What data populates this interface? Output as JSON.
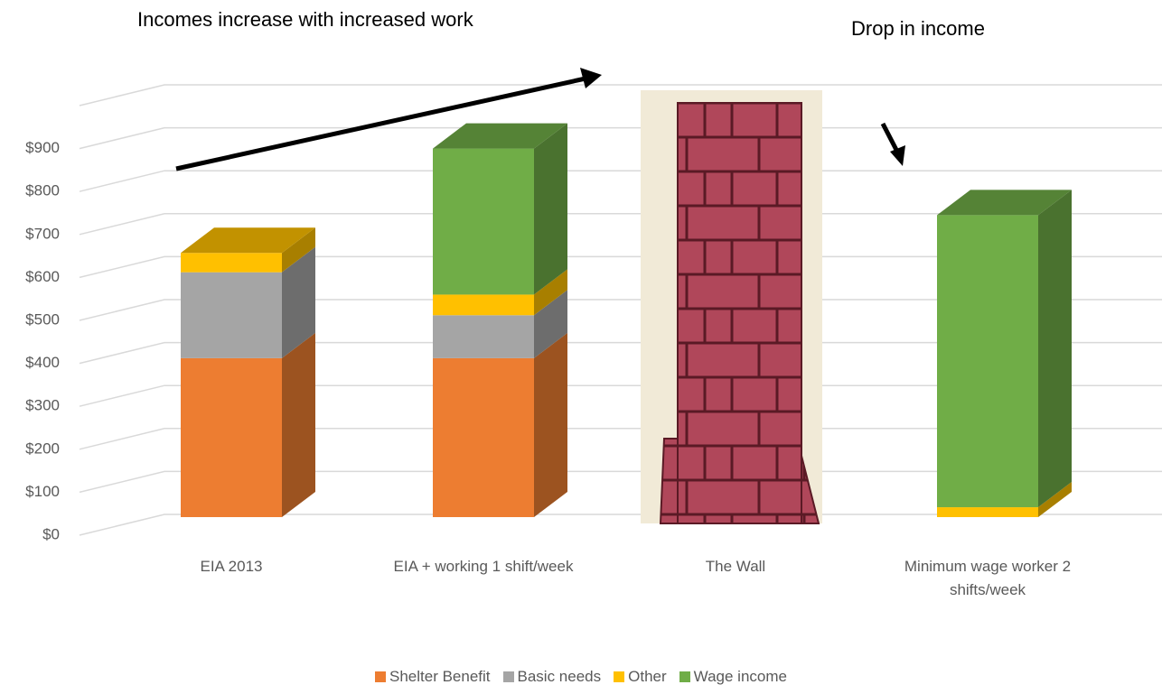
{
  "chart_data": {
    "type": "bar3d-stacked",
    "annotations": [
      "Incomes increase with increased work",
      "Drop in income"
    ],
    "categories": [
      "EIA 2013",
      "EIA + working 1 shift/week",
      "The Wall",
      "Minimum wage worker 2 shifts/week"
    ],
    "series": [
      {
        "name": "Shelter Benefit",
        "color": "#ed7d31",
        "values": [
          370,
          370,
          null,
          0
        ]
      },
      {
        "name": "Basic needs",
        "color": "#a5a5a5",
        "values": [
          200,
          100,
          null,
          0
        ]
      },
      {
        "name": "Other",
        "color": "#ffc000",
        "values": [
          45,
          48,
          null,
          23
        ]
      },
      {
        "name": "Wage income",
        "color": "#70ad47",
        "values": [
          0,
          340,
          null,
          680
        ]
      }
    ],
    "ylim": [
      0,
      1000
    ],
    "yticks": [
      {
        "value": 0,
        "label": "$0"
      },
      {
        "value": 100,
        "label": "$100"
      },
      {
        "value": 200,
        "label": "$200"
      },
      {
        "value": 300,
        "label": "$300"
      },
      {
        "value": 400,
        "label": "$400"
      },
      {
        "value": 500,
        "label": "$500"
      },
      {
        "value": 600,
        "label": "$600"
      },
      {
        "value": 700,
        "label": "$700"
      },
      {
        "value": 800,
        "label": "$800"
      },
      {
        "value": 900,
        "label": "$900"
      }
    ],
    "grid": true
  }
}
